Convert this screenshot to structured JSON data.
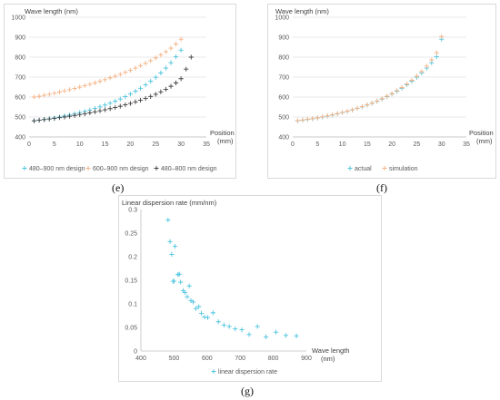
{
  "chart_data": [
    {
      "type": "scatter",
      "id": "e",
      "ylabel": "Wave length (nm)",
      "xlabel": "Position (mm)",
      "xlabel_lines": [
        "Position",
        "(mm)"
      ],
      "xlim": [
        0,
        35
      ],
      "ylim": [
        400,
        1000
      ],
      "xticks": [
        0,
        5,
        10,
        15,
        20,
        25,
        30,
        35
      ],
      "yticks": [
        400,
        500,
        600,
        700,
        800,
        900,
        1000
      ],
      "grid": true,
      "legend": "bottom",
      "series": [
        {
          "name": "480–900 nm design",
          "color": "#4bc4de",
          "x": [
            1,
            2,
            3,
            4,
            5,
            6,
            7,
            8,
            9,
            10,
            11,
            12,
            13,
            14,
            15,
            16,
            17,
            18,
            19,
            20,
            21,
            22,
            23,
            24,
            25,
            26,
            27,
            28,
            29,
            30
          ],
          "y": [
            481,
            484,
            488,
            491,
            495,
            500,
            505,
            510,
            516,
            522,
            528,
            535,
            543,
            551,
            560,
            569,
            579,
            590,
            602,
            615,
            629,
            644,
            661,
            679,
            699,
            721,
            745,
            772,
            802,
            835
          ]
        },
        {
          "name": "600–900 nm design",
          "color": "#f4b183",
          "x": [
            1,
            2,
            3,
            4,
            5,
            6,
            7,
            8,
            9,
            10,
            11,
            12,
            13,
            14,
            15,
            16,
            17,
            18,
            19,
            20,
            21,
            22,
            23,
            24,
            25,
            26,
            27,
            28,
            29,
            30
          ],
          "y": [
            600,
            604,
            609,
            614,
            619,
            625,
            631,
            637,
            643,
            650,
            657,
            664,
            671,
            679,
            687,
            696,
            705,
            714,
            724,
            734,
            745,
            757,
            769,
            782,
            796,
            811,
            827,
            845,
            866,
            890
          ]
        },
        {
          "name": "480–800 nm design",
          "color": "#404040",
          "x": [
            1,
            2,
            3,
            4,
            5,
            6,
            7,
            8,
            9,
            10,
            11,
            12,
            13,
            14,
            15,
            16,
            17,
            18,
            19,
            20,
            21,
            22,
            23,
            24,
            25,
            26,
            27,
            28,
            29,
            30,
            31,
            32
          ],
          "y": [
            481,
            484,
            487,
            490,
            493,
            497,
            500,
            504,
            508,
            512,
            516,
            521,
            526,
            531,
            536,
            542,
            548,
            554,
            561,
            568,
            576,
            584,
            593,
            603,
            614,
            626,
            639,
            654,
            671,
            692,
            740,
            800
          ]
        }
      ]
    },
    {
      "type": "scatter",
      "id": "f",
      "ylabel": "Wave length (nm)",
      "xlabel": "Position (mm)",
      "xlabel_lines": [
        "Position",
        "(mm)"
      ],
      "xlim": [
        0,
        35
      ],
      "ylim": [
        400,
        1000
      ],
      "xticks": [
        0,
        5,
        10,
        15,
        20,
        25,
        30,
        35
      ],
      "yticks": [
        400,
        500,
        600,
        700,
        800,
        900,
        1000
      ],
      "grid": true,
      "legend": "bottom",
      "series": [
        {
          "name": "actual",
          "color": "#4bc4de",
          "x": [
            1,
            2,
            3,
            4,
            5,
            6,
            7,
            8,
            9,
            10,
            11,
            12,
            13,
            14,
            15,
            16,
            17,
            18,
            19,
            20,
            21,
            22,
            23,
            24,
            25,
            26,
            27,
            28,
            29,
            30
          ],
          "y": [
            481,
            484,
            488,
            491,
            495,
            500,
            505,
            510,
            516,
            522,
            528,
            535,
            543,
            551,
            560,
            569,
            579,
            590,
            602,
            615,
            629,
            644,
            661,
            679,
            699,
            721,
            745,
            772,
            802,
            890
          ]
        },
        {
          "name": "simulation",
          "color": "#f4b183",
          "x": [
            1,
            2,
            3,
            4,
            5,
            6,
            7,
            8,
            9,
            10,
            11,
            12,
            13,
            14,
            15,
            16,
            17,
            18,
            19,
            20,
            21,
            22,
            23,
            24,
            25,
            26,
            27,
            28,
            29,
            30
          ],
          "y": [
            482,
            485,
            489,
            492,
            496,
            501,
            506,
            511,
            517,
            523,
            529,
            536,
            544,
            552,
            561,
            570,
            580,
            592,
            604,
            617,
            632,
            648,
            665,
            684,
            705,
            728,
            755,
            786,
            822,
            903
          ]
        }
      ]
    },
    {
      "type": "scatter",
      "id": "g",
      "ylabel": "Linear dispersion rate (mm/nm)",
      "xlabel": "Wave length (nm)",
      "xlabel_lines": [
        "Wave length",
        "(nm)"
      ],
      "xlim": [
        400,
        900
      ],
      "ylim": [
        0,
        0.3
      ],
      "xticks": [
        400,
        500,
        600,
        700,
        800,
        900
      ],
      "yticks": [
        0,
        0.05,
        0.1,
        0.15,
        0.2,
        0.25,
        0.3
      ],
      "ytick_labels": [
        "0",
        "0.05",
        "0.1",
        "0.15",
        "0.2",
        "0.25",
        "0.3"
      ],
      "grid": false,
      "legend": "bottom",
      "series": [
        {
          "name": "linear dispersion rate",
          "color": "#4bc4de",
          "x": [
            482,
            488,
            493,
            497,
            503,
            500,
            512,
            516,
            520,
            528,
            533,
            540,
            546,
            551,
            558,
            566,
            575,
            583,
            592,
            602,
            618,
            634,
            651,
            667,
            685,
            705,
            727,
            752,
            778,
            808,
            838,
            870
          ],
          "y": [
            0.278,
            0.232,
            0.205,
            0.148,
            0.222,
            0.148,
            0.162,
            0.163,
            0.146,
            0.128,
            0.124,
            0.115,
            0.138,
            0.107,
            0.104,
            0.09,
            0.094,
            0.08,
            0.072,
            0.071,
            0.081,
            0.062,
            0.055,
            0.052,
            0.047,
            0.045,
            0.035,
            0.052,
            0.03,
            0.04,
            0.033,
            0.032
          ]
        }
      ]
    }
  ],
  "captions": {
    "e": "(e)",
    "f": "(f)",
    "g": "(g)"
  }
}
